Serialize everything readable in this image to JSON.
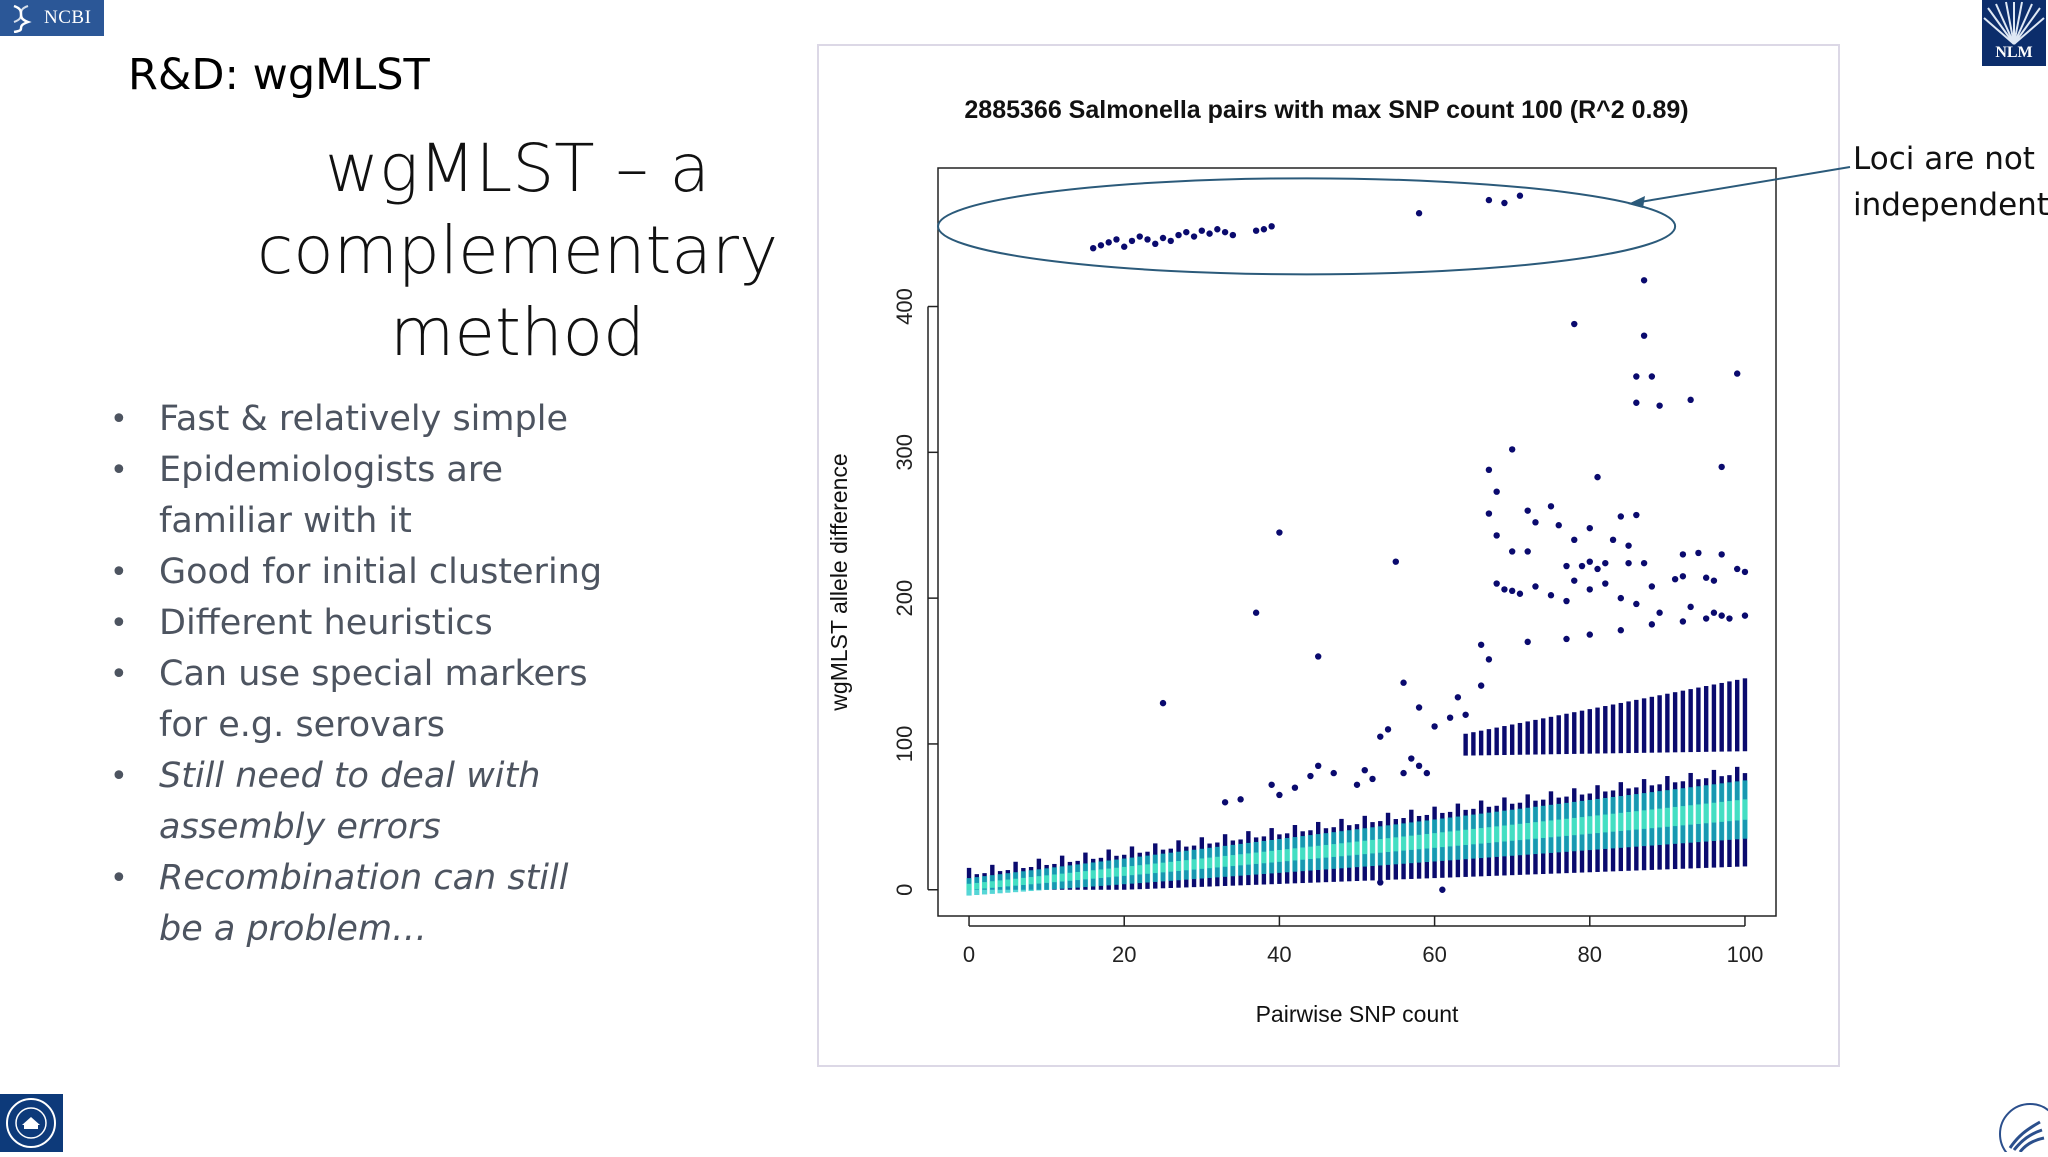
{
  "logos": {
    "ncbi": "NCBI",
    "nlm": "NLM",
    "nih_seal": "nih-seal-icon",
    "hhs": "hhs-eagle-icon"
  },
  "slide": {
    "section_title": "R&D: wgMLST",
    "heading_lines": [
      "wgMLST – a",
      "complementary",
      "method"
    ],
    "bullets": [
      {
        "lines": [
          "Fast & relatively simple"
        ],
        "italic": false
      },
      {
        "lines": [
          "Epidemiologists are",
          "familiar with it"
        ],
        "italic": false
      },
      {
        "lines": [
          "Good for initial clustering"
        ],
        "italic": false
      },
      {
        "lines": [
          "Different heuristics"
        ],
        "italic": false
      },
      {
        "lines": [
          "Can use special markers",
          "for e.g. serovars"
        ],
        "italic": false
      },
      {
        "lines": [
          "Still need to deal with",
          "assembly errors"
        ],
        "italic": true
      },
      {
        "lines": [
          "Recombination can still",
          "be a problem…"
        ],
        "italic": true
      }
    ],
    "bullet_glyph": "•"
  },
  "annotation": {
    "lines": [
      "Loci are not",
      "independent"
    ]
  },
  "colors": {
    "point": "#0a0a6e",
    "density_mid": "#1ec8c8",
    "density_core": "#50f0c8",
    "callout": "#2b5a7a"
  },
  "chart_data": {
    "type": "scatter",
    "title": "2885366 Salmonella pairs with max SNP count 100 (R^2 0.89)",
    "xlabel": "Pairwise SNP count",
    "ylabel": "wgMLST allele difference",
    "xlim": [
      -4,
      104
    ],
    "ylim": [
      -18,
      495
    ],
    "xticks": [
      0,
      20,
      40,
      60,
      80,
      100
    ],
    "yticks": [
      0,
      100,
      200,
      300,
      400
    ],
    "n_pairs": 2885366,
    "max_snp": 100,
    "r_squared": 0.89,
    "band_model": {
      "x_range": [
        0,
        100
      ],
      "main_low": [
        0,
        20
      ],
      "main_high": [
        10,
        80
      ],
      "main_center": [
        2,
        55
      ],
      "upper_cluster_x": [
        64,
        100
      ],
      "upper_cluster_y": [
        95,
        145
      ]
    },
    "outliers": [
      [
        16,
        440
      ],
      [
        17,
        442
      ],
      [
        18,
        444
      ],
      [
        19,
        446
      ],
      [
        20,
        441
      ],
      [
        21,
        445
      ],
      [
        22,
        448
      ],
      [
        23,
        446
      ],
      [
        24,
        443
      ],
      [
        25,
        447
      ],
      [
        26,
        445
      ],
      [
        27,
        449
      ],
      [
        28,
        451
      ],
      [
        29,
        448
      ],
      [
        30,
        452
      ],
      [
        31,
        450
      ],
      [
        32,
        453
      ],
      [
        33,
        451
      ],
      [
        34,
        449
      ],
      [
        37,
        452
      ],
      [
        38,
        453
      ],
      [
        39,
        455
      ],
      [
        58,
        464
      ],
      [
        67,
        473
      ],
      [
        69,
        471
      ],
      [
        71,
        476
      ],
      [
        87,
        418
      ],
      [
        78,
        388
      ],
      [
        87,
        380
      ],
      [
        86,
        352
      ],
      [
        88,
        352
      ],
      [
        86,
        334
      ],
      [
        89,
        332
      ],
      [
        93,
        336
      ],
      [
        99,
        354
      ],
      [
        97,
        290
      ],
      [
        81,
        283
      ],
      [
        70,
        302
      ],
      [
        67,
        288
      ],
      [
        68,
        273
      ],
      [
        67,
        258
      ],
      [
        68,
        243
      ],
      [
        72,
        260
      ],
      [
        75,
        263
      ],
      [
        73,
        252
      ],
      [
        76,
        250
      ],
      [
        80,
        248
      ],
      [
        84,
        256
      ],
      [
        86,
        257
      ],
      [
        78,
        240
      ],
      [
        83,
        240
      ],
      [
        85,
        236
      ],
      [
        80,
        225
      ],
      [
        82,
        224
      ],
      [
        70,
        232
      ],
      [
        72,
        232
      ],
      [
        77,
        222
      ],
      [
        79,
        222
      ],
      [
        81,
        220
      ],
      [
        85,
        224
      ],
      [
        87,
        224
      ],
      [
        88,
        208
      ],
      [
        92,
        230
      ],
      [
        94,
        231
      ],
      [
        97,
        230
      ],
      [
        92,
        215
      ],
      [
        95,
        214
      ],
      [
        96,
        212
      ],
      [
        99,
        220
      ],
      [
        100,
        218
      ],
      [
        91,
        213
      ],
      [
        68,
        210
      ],
      [
        69,
        206
      ],
      [
        71,
        203
      ],
      [
        70,
        205
      ],
      [
        73,
        208
      ],
      [
        75,
        202
      ],
      [
        77,
        198
      ],
      [
        78,
        212
      ],
      [
        80,
        206
      ],
      [
        82,
        210
      ],
      [
        84,
        200
      ],
      [
        86,
        196
      ],
      [
        89,
        190
      ],
      [
        93,
        194
      ],
      [
        96,
        190
      ],
      [
        98,
        186
      ],
      [
        100,
        188
      ],
      [
        72,
        170
      ],
      [
        77,
        172
      ],
      [
        80,
        175
      ],
      [
        84,
        178
      ],
      [
        88,
        182
      ],
      [
        92,
        184
      ],
      [
        95,
        186
      ],
      [
        97,
        188
      ],
      [
        66,
        168
      ],
      [
        67,
        158
      ],
      [
        66,
        140
      ],
      [
        63,
        132
      ],
      [
        58,
        125
      ],
      [
        56,
        142
      ],
      [
        40,
        245
      ],
      [
        37,
        190
      ],
      [
        45,
        160
      ],
      [
        25,
        128
      ],
      [
        55,
        225
      ],
      [
        60,
        112
      ],
      [
        62,
        118
      ],
      [
        64,
        120
      ],
      [
        54,
        110
      ],
      [
        53,
        105
      ],
      [
        57,
        90
      ],
      [
        58,
        85
      ],
      [
        56,
        80
      ],
      [
        59,
        80
      ],
      [
        45,
        85
      ],
      [
        47,
        80
      ],
      [
        44,
        78
      ],
      [
        51,
        82
      ],
      [
        52,
        76
      ],
      [
        50,
        72
      ],
      [
        40,
        65
      ],
      [
        39,
        72
      ],
      [
        42,
        70
      ],
      [
        35,
        62
      ],
      [
        33,
        60
      ],
      [
        61,
        0
      ],
      [
        53,
        5
      ]
    ]
  }
}
